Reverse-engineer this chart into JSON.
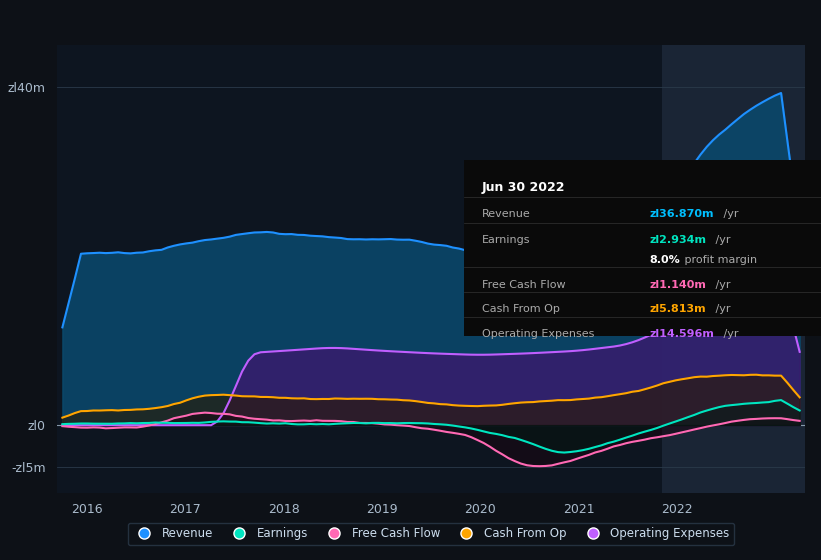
{
  "bg_color": "#0d1117",
  "chart_bg": "#0d1520",
  "highlight_bg": "#1a2535",
  "grid_color": "#2a3a4a",
  "yticks": [
    "zl40m",
    "zl0",
    "-zl5m"
  ],
  "ytick_vals": [
    40,
    0,
    -5
  ],
  "ylim": [
    -8,
    45
  ],
  "xlim": [
    2015.7,
    2023.3
  ],
  "xtick_vals": [
    2016,
    2017,
    2018,
    2019,
    2020,
    2021,
    2022
  ],
  "highlight_x_start": 2021.85,
  "tooltip": {
    "title": "Jun 30 2022",
    "rows": [
      {
        "label": "Revenue",
        "value": "zl36.870m",
        "color": "#00bfff",
        "suffix": " /yr"
      },
      {
        "label": "Earnings",
        "value": "zl2.934m",
        "color": "#00e5c0",
        "suffix": " /yr"
      },
      {
        "label": "",
        "value": "8.0%",
        "value_color": "#ffffff",
        "suffix": " profit margin",
        "color": "#ffffff"
      },
      {
        "label": "Free Cash Flow",
        "value": "zl1.140m",
        "color": "#ff69b4",
        "suffix": " /yr"
      },
      {
        "label": "Cash From Op",
        "value": "zl5.813m",
        "color": "#ffa500",
        "suffix": " /yr"
      },
      {
        "label": "Operating Expenses",
        "value": "zl14.596m",
        "color": "#bf5fff",
        "suffix": " /yr"
      }
    ]
  },
  "series": {
    "revenue": {
      "color": "#1e90ff",
      "fill_color": "#0a4a6e",
      "label": "Revenue"
    },
    "op_expenses": {
      "color": "#bf5fff",
      "fill_color": "#3a1a6e",
      "label": "Operating Expenses"
    },
    "cash_from_op": {
      "color": "#ffa500",
      "fill_color": "#3a2a00",
      "label": "Cash From Op"
    },
    "free_cash_flow": {
      "color": "#ff69b4",
      "fill_color": "#3a0a2a",
      "label": "Free Cash Flow"
    },
    "earnings": {
      "color": "#00e5c0",
      "fill_color": "#004a40",
      "label": "Earnings"
    }
  },
  "legend_items": [
    {
      "label": "Revenue",
      "color": "#1e90ff"
    },
    {
      "label": "Earnings",
      "color": "#00e5c0"
    },
    {
      "label": "Free Cash Flow",
      "color": "#ff69b4"
    },
    {
      "label": "Cash From Op",
      "color": "#ffa500"
    },
    {
      "label": "Operating Expenses",
      "color": "#bf5fff"
    }
  ]
}
